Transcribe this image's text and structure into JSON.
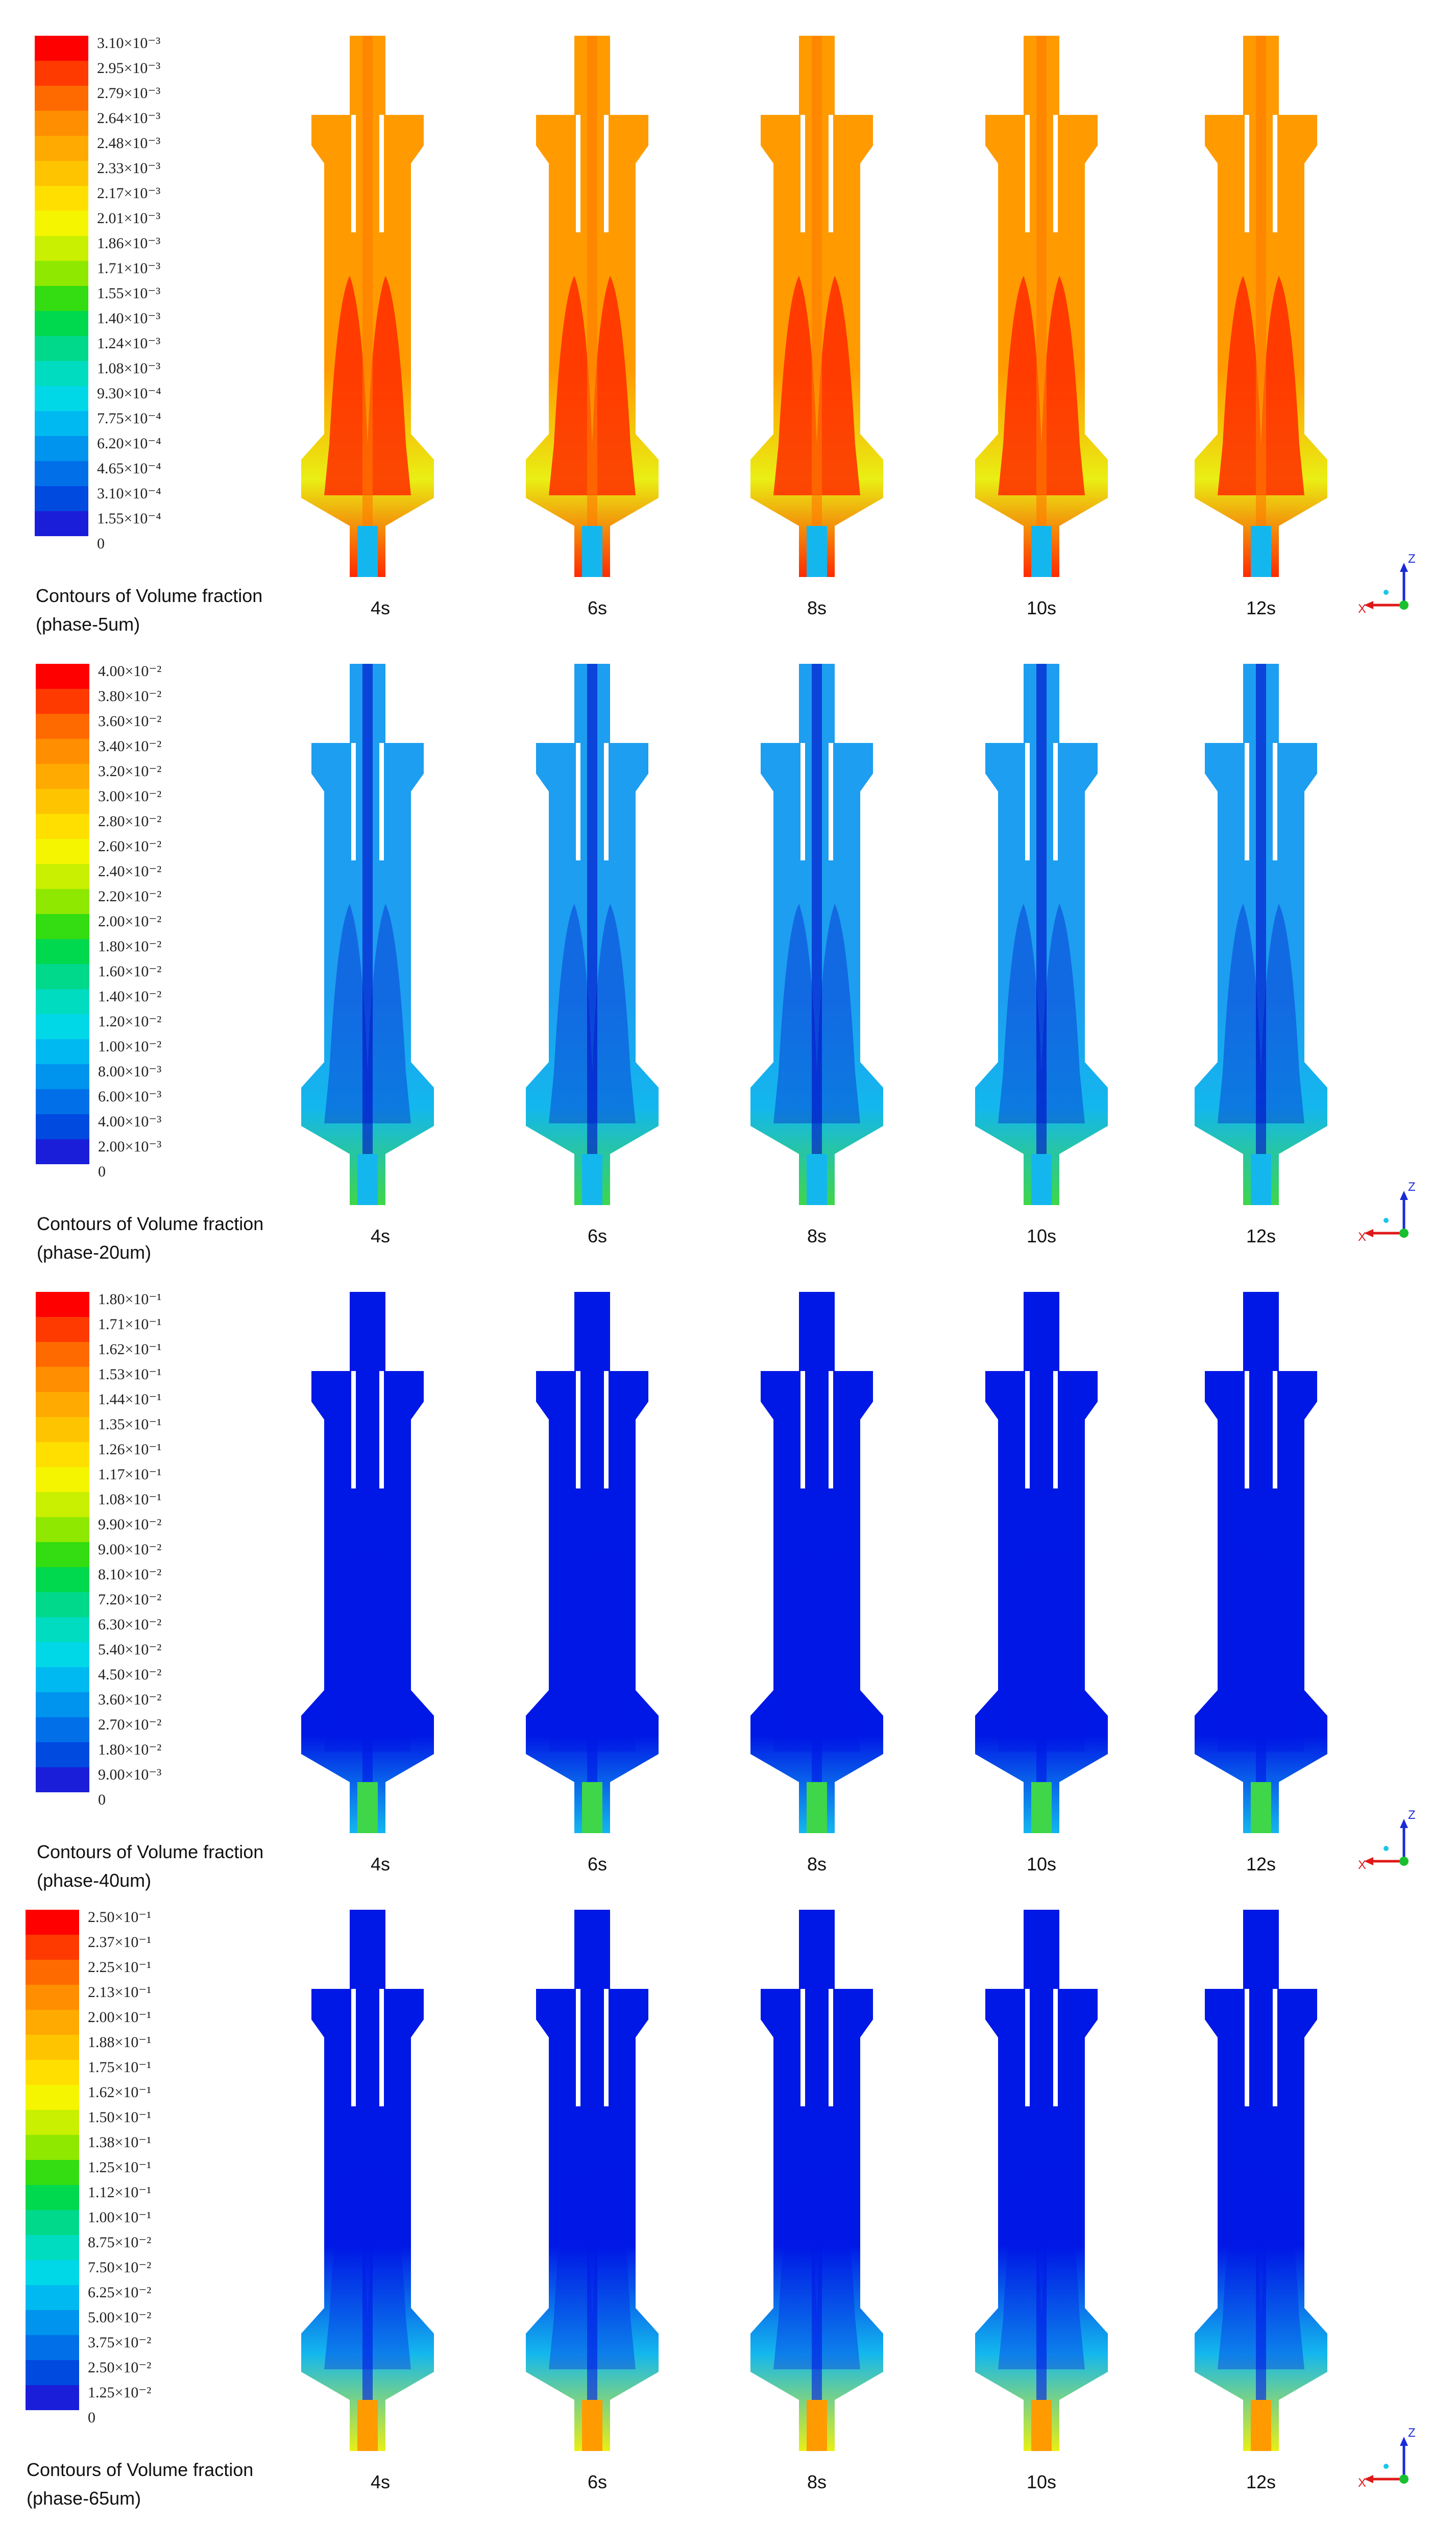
{
  "panels": [
    {
      "id": "5um",
      "caption": [
        "Contours of Volume fraction",
        "(phase-5um)"
      ],
      "legend": [
        "3.10×10⁻³",
        "2.95×10⁻³",
        "2.79×10⁻³",
        "2.64×10⁻³",
        "2.48×10⁻³",
        "2.33×10⁻³",
        "2.17×10⁻³",
        "2.01×10⁻³",
        "1.86×10⁻³",
        "1.71×10⁻³",
        "1.55×10⁻³",
        "1.40×10⁻³",
        "1.24×10⁻³",
        "1.08×10⁻³",
        "9.30×10⁻⁴",
        "7.75×10⁻⁴",
        "6.20×10⁻⁴",
        "4.65×10⁻⁴",
        "3.10×10⁻⁴",
        "1.55×10⁻⁴",
        "0"
      ],
      "times": [
        "4s",
        "6s",
        "8s",
        "10s",
        "12s"
      ],
      "axes": {
        "z": "Z",
        "x": "X"
      }
    },
    {
      "id": "20um",
      "caption": [
        "Contours of Volume fraction",
        "(phase-20um)"
      ],
      "legend": [
        "4.00×10⁻²",
        "3.80×10⁻²",
        "3.60×10⁻²",
        "3.40×10⁻²",
        "3.20×10⁻²",
        "3.00×10⁻²",
        "2.80×10⁻²",
        "2.60×10⁻²",
        "2.40×10⁻²",
        "2.20×10⁻²",
        "2.00×10⁻²",
        "1.80×10⁻²",
        "1.60×10⁻²",
        "1.40×10⁻²",
        "1.20×10⁻²",
        "1.00×10⁻²",
        "8.00×10⁻³",
        "6.00×10⁻³",
        "4.00×10⁻³",
        "2.00×10⁻³",
        "0"
      ],
      "times": [
        "4s",
        "6s",
        "8s",
        "10s",
        "12s"
      ],
      "axes": {
        "z": "Z",
        "x": "X"
      }
    },
    {
      "id": "40um",
      "caption": [
        "Contours of Volume fraction",
        "(phase-40um)"
      ],
      "legend": [
        "1.80×10⁻¹",
        "1.71×10⁻¹",
        "1.62×10⁻¹",
        "1.53×10⁻¹",
        "1.44×10⁻¹",
        "1.35×10⁻¹",
        "1.26×10⁻¹",
        "1.17×10⁻¹",
        "1.08×10⁻¹",
        "9.90×10⁻²",
        "9.00×10⁻²",
        "8.10×10⁻²",
        "7.20×10⁻²",
        "6.30×10⁻²",
        "5.40×10⁻²",
        "4.50×10⁻²",
        "3.60×10⁻²",
        "2.70×10⁻²",
        "1.80×10⁻²",
        "9.00×10⁻³",
        "0"
      ],
      "times": [
        "4s",
        "6s",
        "8s",
        "10s",
        "12s"
      ],
      "axes": {
        "z": "Z",
        "x": "X"
      }
    },
    {
      "id": "65um",
      "caption": [
        "Contours of Volume fraction",
        "(phase-65um)"
      ],
      "legend": [
        "2.50×10⁻¹",
        "2.37×10⁻¹",
        "2.25×10⁻¹",
        "2.13×10⁻¹",
        "2.00×10⁻¹",
        "1.88×10⁻¹",
        "1.75×10⁻¹",
        "1.62×10⁻¹",
        "1.50×10⁻¹",
        "1.38×10⁻¹",
        "1.25×10⁻¹",
        "1.12×10⁻¹",
        "1.00×10⁻¹",
        "8.75×10⁻²",
        "7.50×10⁻²",
        "6.25×10⁻²",
        "5.00×10⁻²",
        "3.75×10⁻²",
        "2.50×10⁻²",
        "1.25×10⁻²",
        "0"
      ],
      "times": [
        "4s",
        "6s",
        "8s",
        "10s",
        "12s"
      ],
      "axes": {
        "z": "Z",
        "x": "X"
      }
    }
  ],
  "colormap": [
    "#ff0000",
    "#ff3a00",
    "#ff6a00",
    "#ff8f00",
    "#ffaa00",
    "#ffc400",
    "#ffdf00",
    "#f5f500",
    "#c8f000",
    "#8fe800",
    "#33dd11",
    "#00d84d",
    "#00d98b",
    "#00dcc0",
    "#00d8e8",
    "#00b9f0",
    "#0094ee",
    "#006fe8",
    "#004ae0",
    "#1a1ed8",
    "#0000e0"
  ],
  "field_colors": {
    "blue": "#0018e6",
    "darkblue": "#0008c8",
    "cyan": "#13b7ee",
    "lightblue": "#1d9ef0",
    "green": "#3fd64a",
    "yellow": "#e9ef14",
    "orange": "#ff9b00",
    "deeporange": "#ff7a00",
    "red": "#ff2a00"
  }
}
